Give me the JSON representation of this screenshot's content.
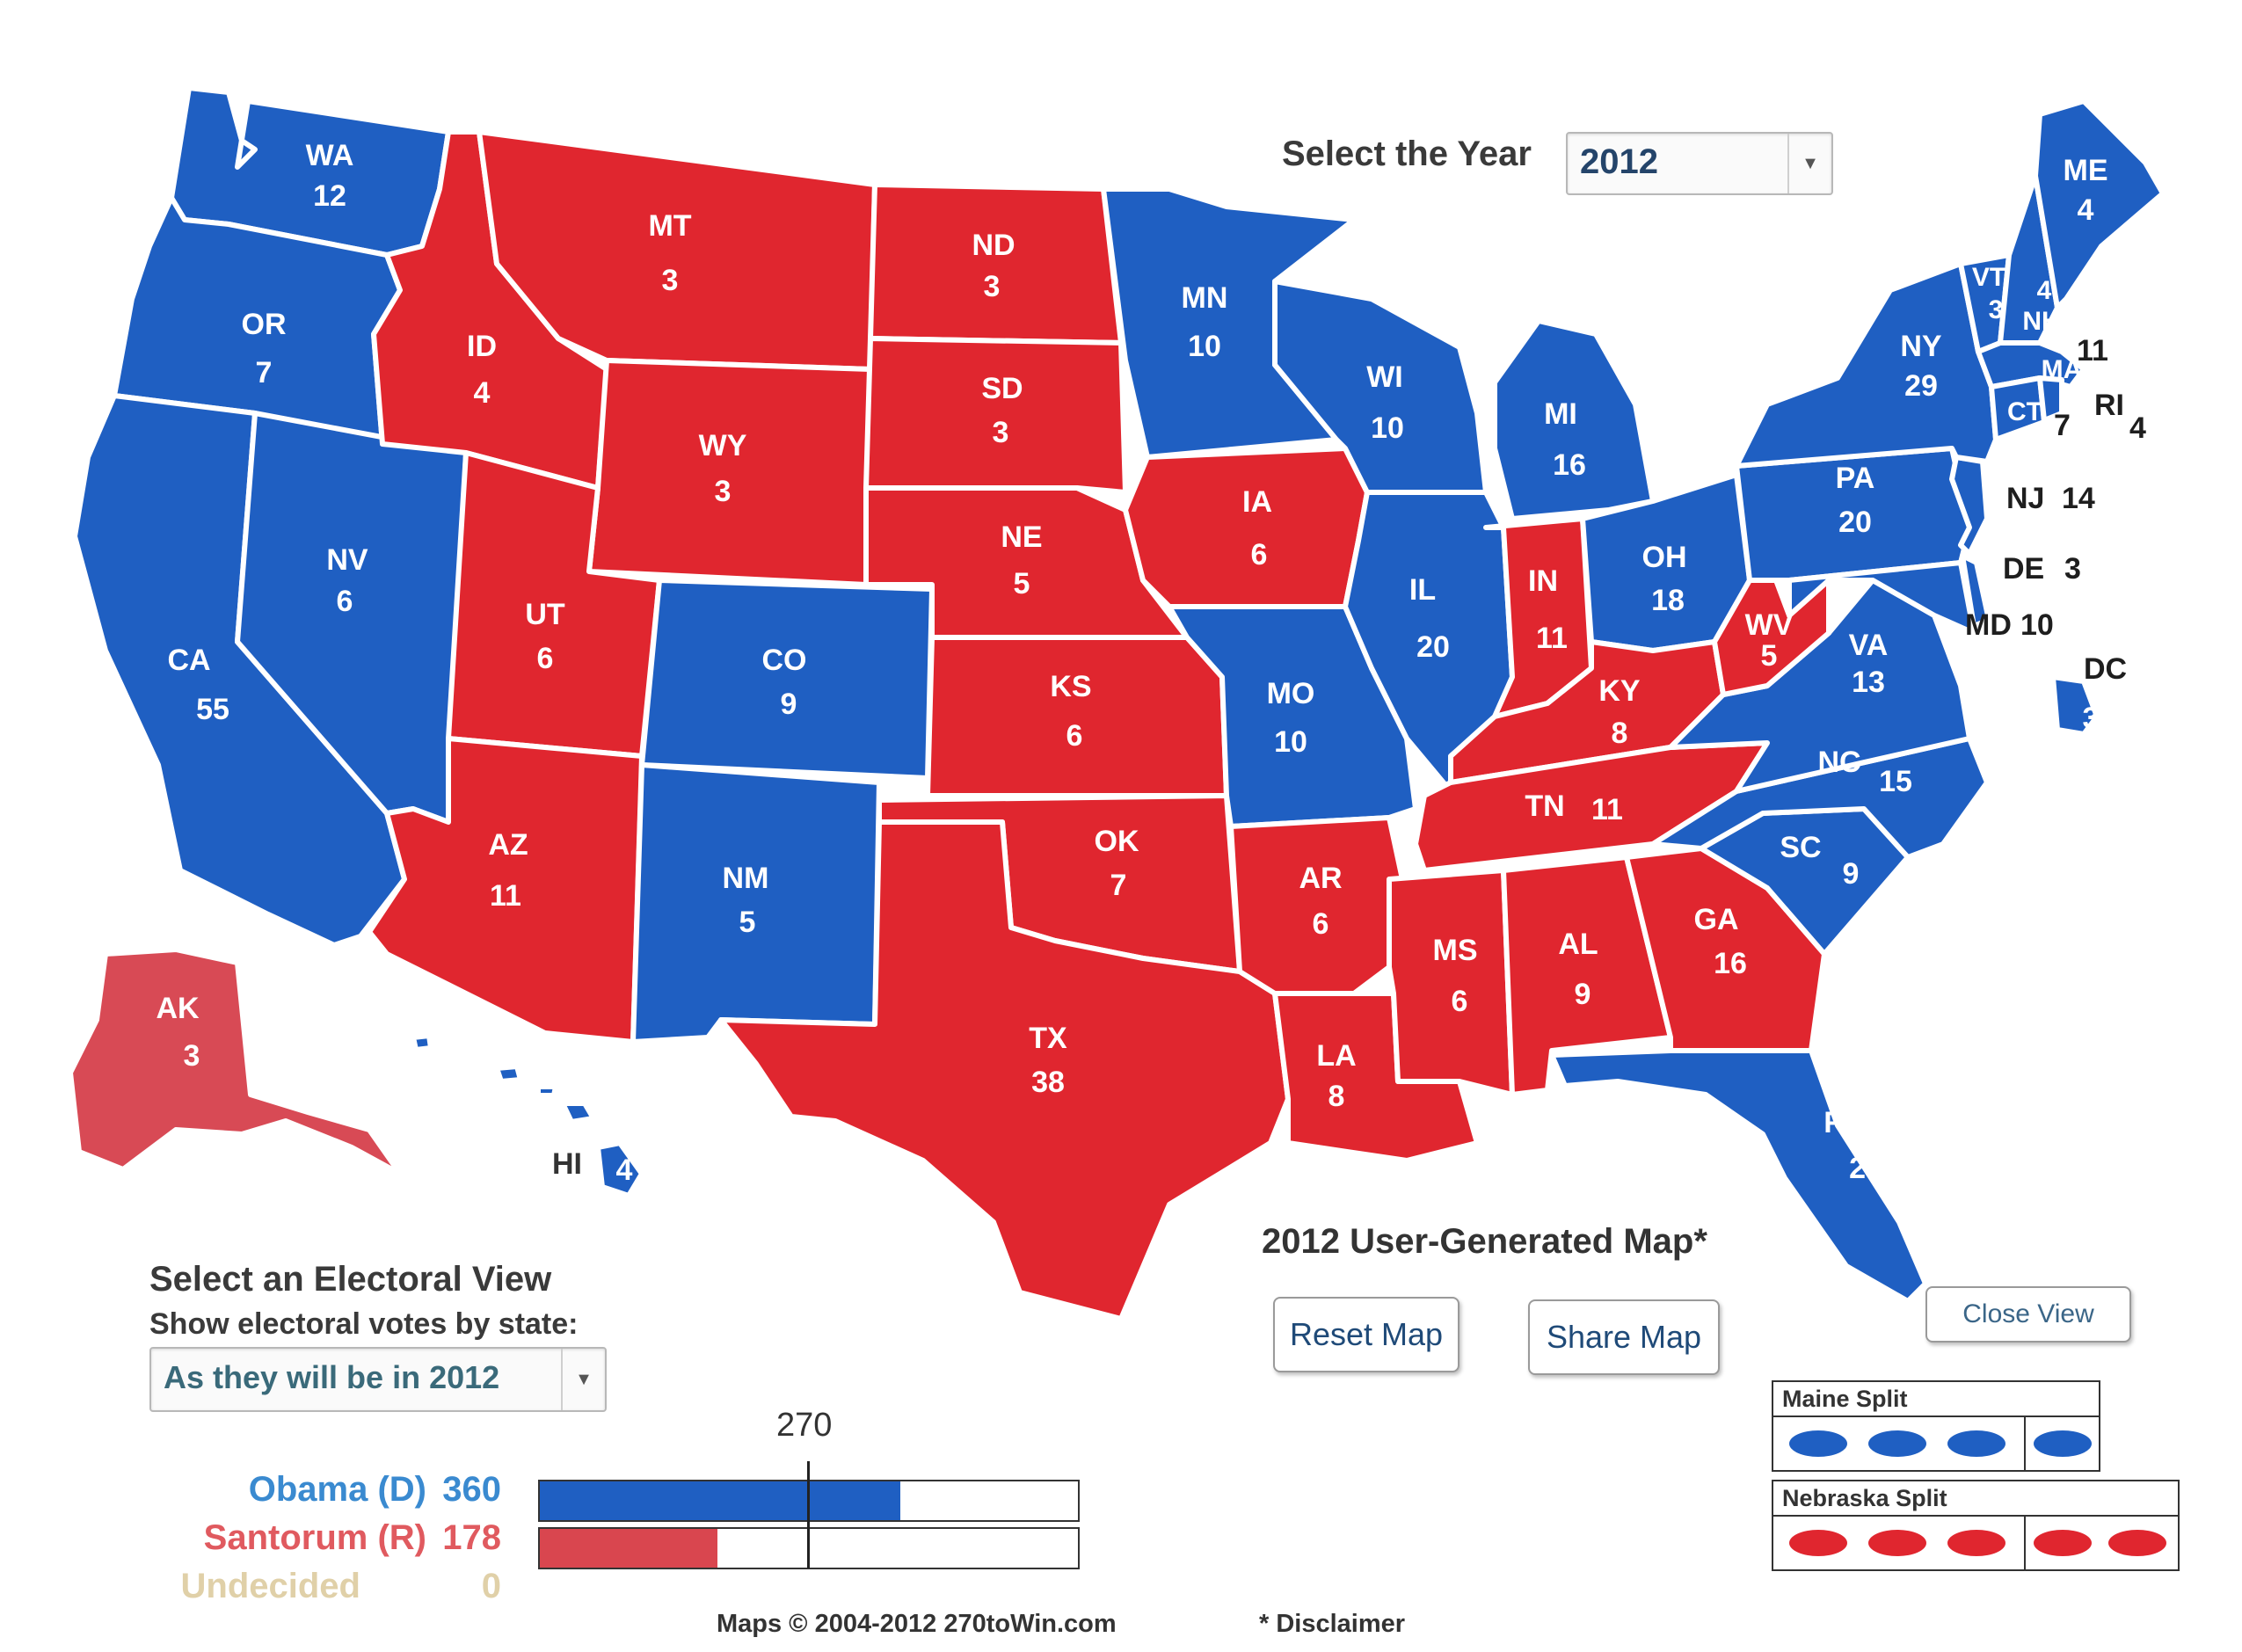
{
  "colors": {
    "dem": "#1f5fc2",
    "rep": "#e0262f",
    "rep_alaska": "#d84a55"
  },
  "year_selector": {
    "label": "Select the Year",
    "value": "2012"
  },
  "map_title": "2012 User-Generated Map*",
  "buttons": {
    "reset": "Reset Map",
    "share": "Share Map",
    "close": "Close View"
  },
  "maine_split": {
    "title": "Maine Split",
    "districts": [
      "dem",
      "dem",
      "dem",
      "dem"
    ]
  },
  "nebraska_split": {
    "title": "Nebraska Split",
    "districts": [
      "rep",
      "rep",
      "rep",
      "rep",
      "rep"
    ]
  },
  "electoral_view": {
    "title": "Select an Electoral View",
    "subtitle": "Show electoral votes by state:",
    "value": "As they will be in 2012"
  },
  "tally": {
    "threshold": "270",
    "total": 538,
    "candidates": [
      {
        "name": "Obama (D)",
        "votes": 360,
        "party": "dem",
        "color": "#3a8ad0"
      },
      {
        "name": "Santorum (R)",
        "votes": 178,
        "party": "rep",
        "color": "#e05a5f"
      },
      {
        "name": "Undecided",
        "votes": 0,
        "party": "none",
        "color": "#e0d0a8"
      }
    ]
  },
  "footer": {
    "copyright": "Maps © 2004-2012 270toWin.com",
    "disclaimer": "* Disclaimer"
  },
  "states": {
    "WA": {
      "abbr": "WA",
      "ev": "12",
      "party": "dem"
    },
    "OR": {
      "abbr": "OR",
      "ev": "7",
      "party": "dem"
    },
    "CA": {
      "abbr": "CA",
      "ev": "55",
      "party": "dem"
    },
    "NV": {
      "abbr": "NV",
      "ev": "6",
      "party": "dem"
    },
    "ID": {
      "abbr": "ID",
      "ev": "4",
      "party": "rep"
    },
    "MT": {
      "abbr": "MT",
      "ev": "3",
      "party": "rep"
    },
    "WY": {
      "abbr": "WY",
      "ev": "3",
      "party": "rep"
    },
    "UT": {
      "abbr": "UT",
      "ev": "6",
      "party": "rep"
    },
    "CO": {
      "abbr": "CO",
      "ev": "9",
      "party": "dem"
    },
    "AZ": {
      "abbr": "AZ",
      "ev": "11",
      "party": "rep"
    },
    "NM": {
      "abbr": "NM",
      "ev": "5",
      "party": "dem"
    },
    "ND": {
      "abbr": "ND",
      "ev": "3",
      "party": "rep"
    },
    "SD": {
      "abbr": "SD",
      "ev": "3",
      "party": "rep"
    },
    "NE": {
      "abbr": "NE",
      "ev": "5",
      "party": "rep"
    },
    "KS": {
      "abbr": "KS",
      "ev": "6",
      "party": "rep"
    },
    "OK": {
      "abbr": "OK",
      "ev": "7",
      "party": "rep"
    },
    "TX": {
      "abbr": "TX",
      "ev": "38",
      "party": "rep"
    },
    "MN": {
      "abbr": "MN",
      "ev": "10",
      "party": "dem"
    },
    "IA": {
      "abbr": "IA",
      "ev": "6",
      "party": "rep"
    },
    "MO": {
      "abbr": "MO",
      "ev": "10",
      "party": "dem"
    },
    "AR": {
      "abbr": "AR",
      "ev": "6",
      "party": "rep"
    },
    "LA": {
      "abbr": "LA",
      "ev": "8",
      "party": "rep"
    },
    "WI": {
      "abbr": "WI",
      "ev": "10",
      "party": "dem"
    },
    "IL": {
      "abbr": "IL",
      "ev": "20",
      "party": "dem"
    },
    "MI": {
      "abbr": "MI",
      "ev": "16",
      "party": "dem"
    },
    "IN": {
      "abbr": "IN",
      "ev": "11",
      "party": "rep"
    },
    "OH": {
      "abbr": "OH",
      "ev": "18",
      "party": "dem"
    },
    "KY": {
      "abbr": "KY",
      "ev": "8",
      "party": "rep"
    },
    "TN": {
      "abbr": "TN",
      "ev": "11",
      "party": "rep"
    },
    "MS": {
      "abbr": "MS",
      "ev": "6",
      "party": "rep"
    },
    "AL": {
      "abbr": "AL",
      "ev": "9",
      "party": "rep"
    },
    "GA": {
      "abbr": "GA",
      "ev": "16",
      "party": "rep"
    },
    "FL": {
      "abbr": "FL",
      "ev": "29",
      "party": "dem"
    },
    "SC": {
      "abbr": "SC",
      "ev": "9",
      "party": "dem"
    },
    "NC": {
      "abbr": "NC",
      "ev": "15",
      "party": "dem"
    },
    "VA": {
      "abbr": "VA",
      "ev": "13",
      "party": "dem"
    },
    "WV": {
      "abbr": "WV",
      "ev": "5",
      "party": "rep"
    },
    "PA": {
      "abbr": "PA",
      "ev": "20",
      "party": "dem"
    },
    "NY": {
      "abbr": "NY",
      "ev": "29",
      "party": "dem"
    },
    "VT": {
      "abbr": "VT",
      "ev": "3",
      "party": "dem"
    },
    "NH": {
      "abbr": "NH",
      "ev": "4",
      "party": "dem"
    },
    "ME": {
      "abbr": "ME",
      "ev": "4",
      "party": "dem"
    },
    "MA": {
      "abbr": "MA",
      "ev": "11",
      "party": "dem"
    },
    "RI": {
      "abbr": "RI",
      "ev": "4",
      "party": "dem"
    },
    "CT": {
      "abbr": "CT",
      "ev": "7",
      "party": "dem"
    },
    "NJ": {
      "abbr": "NJ",
      "ev": "14",
      "party": "dem"
    },
    "DE": {
      "abbr": "DE",
      "ev": "3",
      "party": "dem"
    },
    "MD": {
      "abbr": "MD",
      "ev": "10",
      "party": "dem"
    },
    "DC": {
      "abbr": "DC",
      "ev": "3",
      "party": "dem"
    },
    "AK": {
      "abbr": "AK",
      "ev": "3",
      "party": "rep"
    },
    "HI": {
      "abbr": "HI",
      "ev": "4",
      "party": "dem"
    }
  }
}
